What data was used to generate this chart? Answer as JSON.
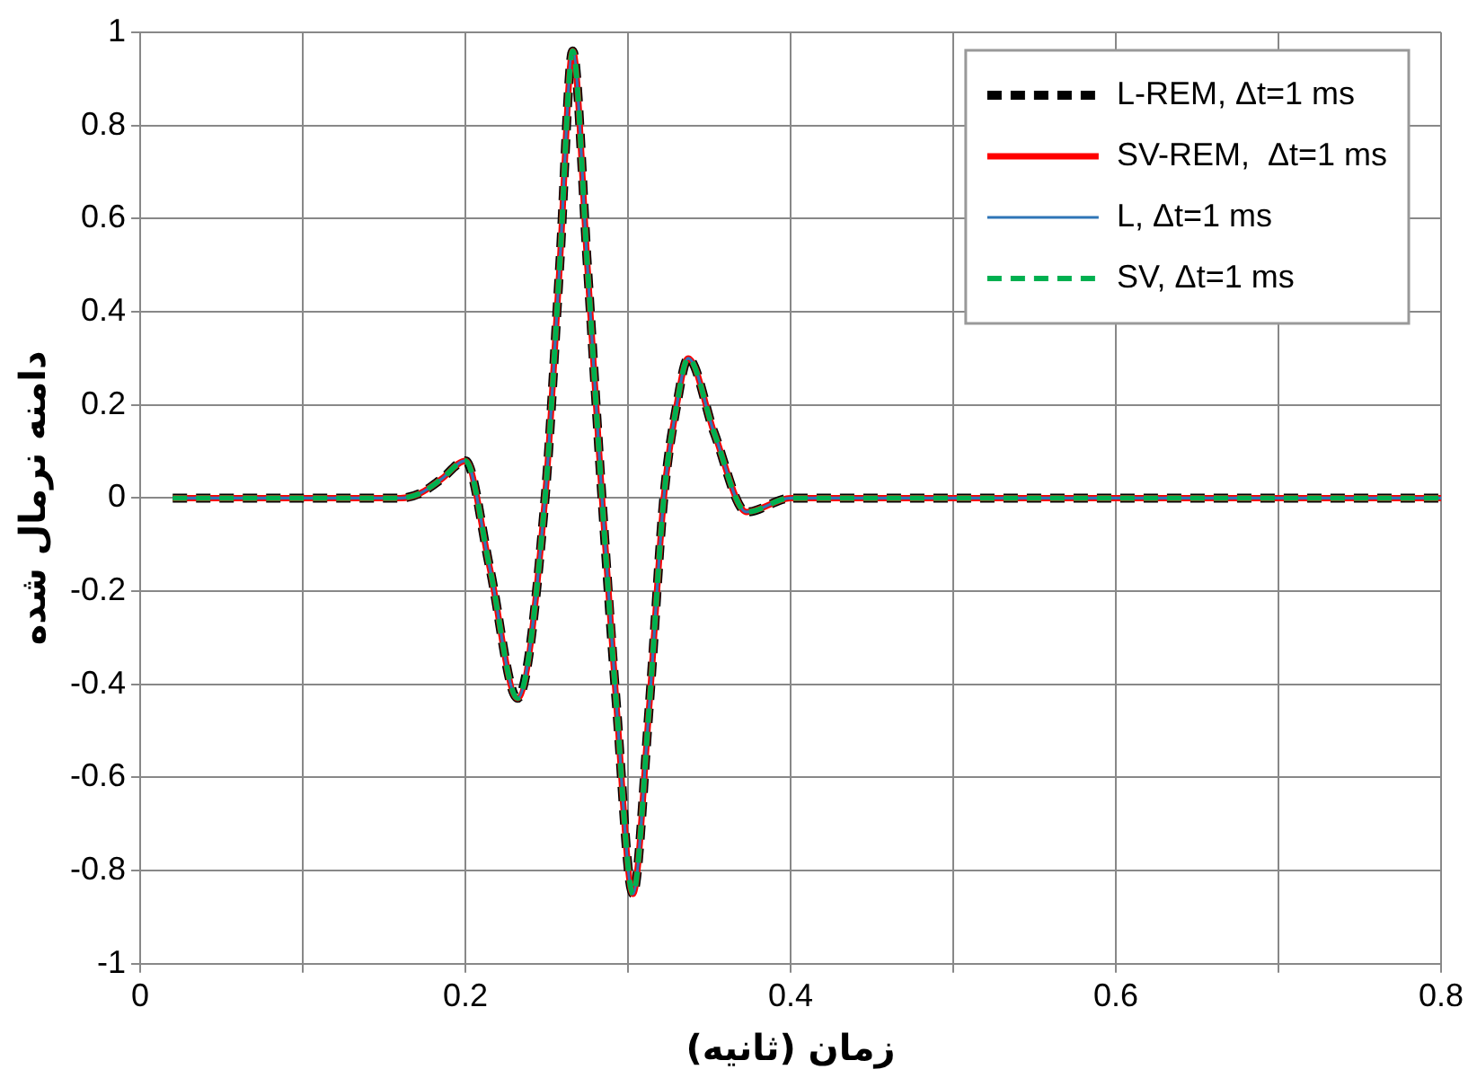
{
  "chart_data": {
    "type": "line",
    "xlabel": "زمان (ثانیه)",
    "ylabel": "دامنه نرمال شده",
    "x": [
      0.02,
      0.1,
      0.16,
      0.172,
      0.185,
      0.2,
      0.215,
      0.232,
      0.249,
      0.258,
      0.266,
      0.275,
      0.284,
      0.293,
      0.303,
      0.313,
      0.322,
      0.33,
      0.337,
      0.353,
      0.373,
      0.4,
      0.5,
      0.6,
      0.7,
      0.8
    ],
    "series": [
      {
        "name": "L-REM, Δt=1 ms",
        "color": "#000000",
        "line_style": "dashed",
        "values": [
          0,
          0,
          0,
          0.01,
          0.04,
          0.08,
          -0.15,
          -0.43,
          0,
          0.5,
          0.96,
          0.5,
          0,
          -0.45,
          -0.85,
          -0.45,
          0,
          0.2,
          0.3,
          0.14,
          -0.03,
          0,
          0,
          0,
          0,
          0
        ]
      },
      {
        "name": "SV-REM,  Δt=1 ms",
        "color": "#ff0000",
        "line_style": "solid",
        "values": [
          0,
          0,
          0,
          0.01,
          0.04,
          0.08,
          -0.15,
          -0.43,
          0,
          0.5,
          0.96,
          0.5,
          0,
          -0.45,
          -0.85,
          -0.45,
          0,
          0.2,
          0.3,
          0.14,
          -0.03,
          0,
          0,
          0,
          0,
          0
        ]
      },
      {
        "name": "L, Δt=1 ms",
        "color": "#2e75b6",
        "line_style": "solid",
        "values": [
          0,
          0,
          0,
          0.01,
          0.04,
          0.08,
          -0.15,
          -0.43,
          0,
          0.5,
          0.96,
          0.5,
          0,
          -0.45,
          -0.85,
          -0.45,
          0,
          0.2,
          0.3,
          0.14,
          -0.03,
          0,
          0,
          0,
          0,
          0
        ]
      },
      {
        "name": "SV, Δt=1 ms",
        "color": "#00b050",
        "line_style": "dashed",
        "values": [
          0,
          0,
          0,
          0.01,
          0.04,
          0.08,
          -0.15,
          -0.43,
          0,
          0.5,
          0.96,
          0.5,
          0,
          -0.45,
          -0.85,
          -0.45,
          0,
          0.2,
          0.3,
          0.14,
          -0.03,
          0,
          0,
          0,
          0,
          0
        ]
      }
    ],
    "xlim": [
      0,
      0.8
    ],
    "xticks": [
      0,
      {
        "value": 0.1,
        "label": null
      },
      0.2,
      {
        "value": 0.3,
        "label": null
      },
      0.4,
      {
        "value": 0.5,
        "label": null
      },
      0.6,
      {
        "value": 0.7,
        "label": null
      },
      0.8
    ],
    "ylim": [
      -1,
      1
    ],
    "yticks": [
      -1,
      -0.8,
      -0.6,
      -0.4,
      -0.2,
      0,
      0.2,
      0.4,
      0.6,
      0.8,
      1
    ],
    "grid": true,
    "legend": "top right",
    "marker": "none"
  }
}
